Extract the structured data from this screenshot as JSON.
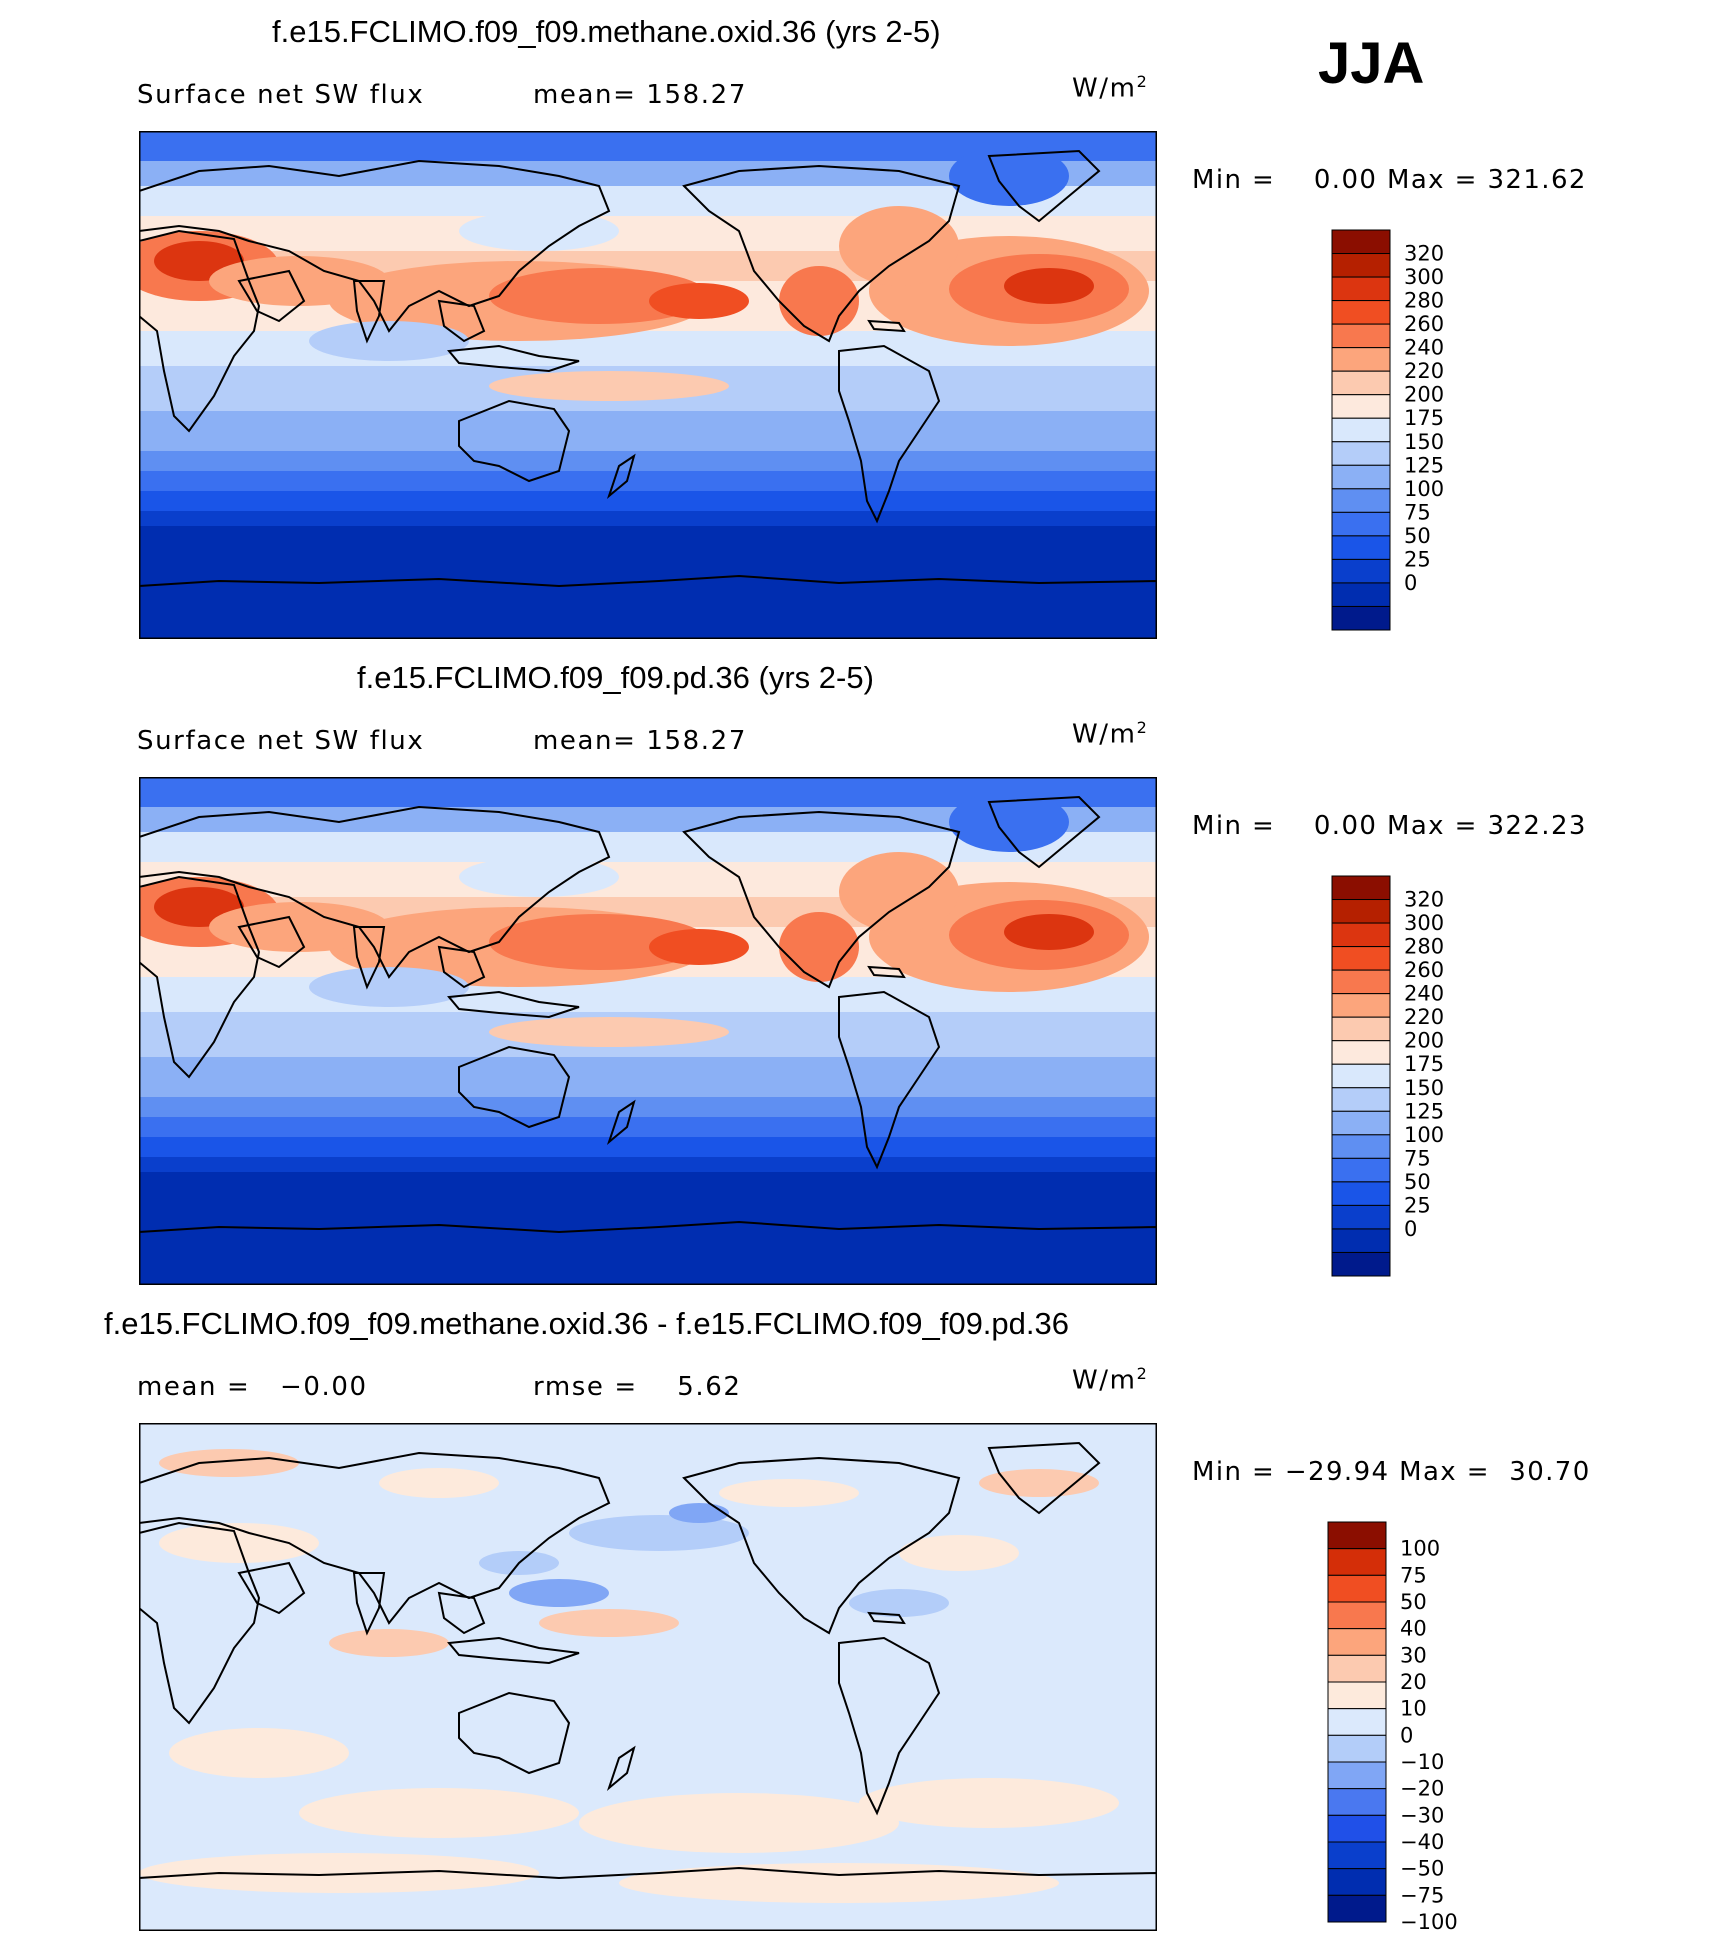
{
  "season": "JJA",
  "colors": {
    "abs": [
      "#001a8c",
      "#002db0",
      "#0a3fcc",
      "#1a55e8",
      "#3a70f0",
      "#5f8ff2",
      "#8bb0f5",
      "#b4cdf9",
      "#d9e8fc",
      "#fde9dd",
      "#fccab0",
      "#fca57c",
      "#f8784e",
      "#f04e22",
      "#dc3510",
      "#b52000",
      "#8b0e00"
    ],
    "diff": [
      "#001a8c",
      "#002db0",
      "#0a3fcc",
      "#2050e8",
      "#4a78f0",
      "#80a6f5",
      "#b3cdf9",
      "#dbe9fc",
      "#fdeadc",
      "#fccab0",
      "#fca57c",
      "#f8784e",
      "#f04e22",
      "#d42e08",
      "#8b0e00"
    ]
  },
  "panels": [
    {
      "title": "f.e15.FCLIMO.f09_f09.methane.oxid.36 (yrs 2-5)",
      "left_label": "Surface net SW flux",
      "mid_label": "mean= 158.27",
      "unit_base": "W/m",
      "unit_exp": "2",
      "minmax": "Min =    0.00 Max = 321.62",
      "map_style": "abs",
      "colorbar_labels": [
        "320",
        "300",
        "280",
        "260",
        "240",
        "220",
        "200",
        "175",
        "150",
        "125",
        "100",
        "75",
        "50",
        "25",
        "0"
      ]
    },
    {
      "title": "f.e15.FCLIMO.f09_f09.pd.36 (yrs 2-5)",
      "left_label": "Surface net SW flux",
      "mid_label": "mean= 158.27",
      "unit_base": "W/m",
      "unit_exp": "2",
      "minmax": "Min =    0.00 Max = 322.23",
      "map_style": "abs",
      "colorbar_labels": [
        "320",
        "300",
        "280",
        "260",
        "240",
        "220",
        "200",
        "175",
        "150",
        "125",
        "100",
        "75",
        "50",
        "25",
        "0"
      ]
    },
    {
      "title": "f.e15.FCLIMO.f09_f09.methane.oxid.36 - f.e15.FCLIMO.f09_f09.pd.36",
      "left_label": "mean =   −0.00",
      "mid_label": "rmse =    5.62",
      "unit_base": "W/m",
      "unit_exp": "2",
      "minmax": "Min = −29.94 Max =  30.70",
      "map_style": "diff",
      "colorbar_labels": [
        "100",
        "75",
        "50",
        "40",
        "30",
        "20",
        "10",
        "0",
        "−10",
        "−20",
        "−30",
        "−40",
        "−50",
        "−75",
        "−100"
      ]
    }
  ]
}
